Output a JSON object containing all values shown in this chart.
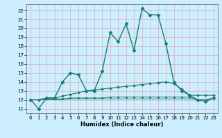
{
  "title": "",
  "xlabel": "Humidex (Indice chaleur)",
  "bg_color": "#cceeff",
  "grid_color": "#dd9999",
  "line_color": "#1a7a6a",
  "xlim": [
    -0.5,
    23.5
  ],
  "ylim": [
    10.5,
    22.7
  ],
  "yticks": [
    11,
    12,
    13,
    14,
    15,
    16,
    17,
    18,
    19,
    20,
    21,
    22
  ],
  "xticks": [
    0,
    1,
    2,
    3,
    4,
    5,
    6,
    7,
    8,
    9,
    10,
    11,
    12,
    13,
    14,
    15,
    16,
    17,
    18,
    19,
    20,
    21,
    22,
    23
  ],
  "lines": [
    {
      "x": [
        0,
        1,
        2,
        3,
        4,
        5,
        6,
        7,
        8,
        9,
        10,
        11,
        12,
        13,
        14,
        15,
        16,
        17,
        18,
        19,
        20,
        21,
        22,
        23
      ],
      "y": [
        12,
        11,
        12.2,
        12.2,
        14,
        15,
        14.8,
        13,
        13,
        15.2,
        19.5,
        18.5,
        20.5,
        17.5,
        22.2,
        21.5,
        21.5,
        18.3,
        14,
        13,
        12.5,
        12,
        11.8,
        12.2
      ],
      "marker": "D",
      "markersize": 2.5,
      "linewidth": 1.0
    },
    {
      "x": [
        0,
        1,
        2,
        3,
        4,
        5,
        6,
        7,
        8,
        9,
        10,
        11,
        12,
        13,
        14,
        15,
        16,
        17,
        18,
        19,
        20,
        21,
        22,
        23
      ],
      "y": [
        12,
        12,
        12.2,
        12.2,
        12.4,
        12.6,
        12.8,
        13.0,
        13.1,
        13.2,
        13.3,
        13.4,
        13.5,
        13.6,
        13.7,
        13.8,
        13.9,
        14.0,
        13.8,
        13.2,
        12.5,
        12.5,
        12.5,
        12.5
      ],
      "marker": "D",
      "markersize": 1.8,
      "linewidth": 0.8
    },
    {
      "x": [
        0,
        1,
        2,
        3,
        4,
        5,
        6,
        7,
        8,
        9,
        10,
        11,
        12,
        13,
        14,
        15,
        16,
        17,
        18,
        19,
        20,
        21,
        22,
        23
      ],
      "y": [
        12,
        12,
        12.1,
        12.1,
        12.1,
        12.2,
        12.2,
        12.2,
        12.2,
        12.2,
        12.3,
        12.3,
        12.3,
        12.3,
        12.3,
        12.3,
        12.3,
        12.3,
        12.3,
        12.3,
        12.3,
        12.0,
        12.0,
        12.2
      ],
      "marker": "D",
      "markersize": 1.5,
      "linewidth": 0.7
    },
    {
      "x": [
        0,
        1,
        2,
        3,
        4,
        5,
        6,
        7,
        8,
        9,
        10,
        11,
        12,
        13,
        14,
        15,
        16,
        17,
        18,
        19,
        20,
        21,
        22,
        23
      ],
      "y": [
        12,
        12,
        12.0,
        12.0,
        12.0,
        12.1,
        12.1,
        12.1,
        12.1,
        12.1,
        12.1,
        12.1,
        12.1,
        12.1,
        12.1,
        12.1,
        12.1,
        12.1,
        12.1,
        12.1,
        12.1,
        12.0,
        12.0,
        12.1
      ],
      "marker": null,
      "markersize": 0,
      "linewidth": 0.6
    }
  ]
}
